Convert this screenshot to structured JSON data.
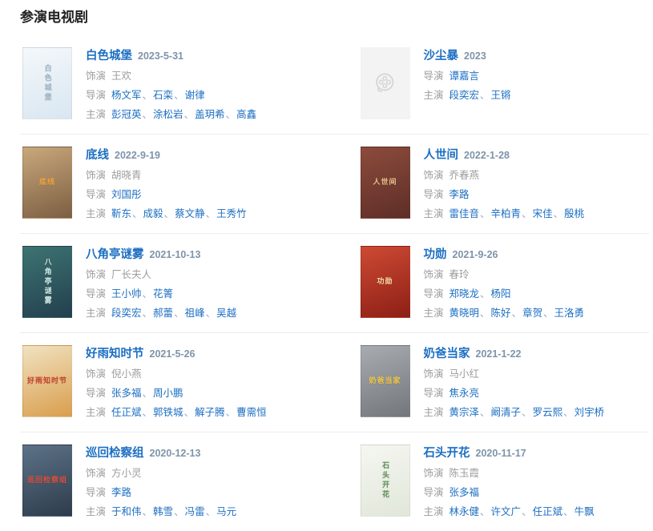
{
  "page": {
    "title": "参演电视剧"
  },
  "labels": {
    "role": "饰演",
    "director": "导演",
    "cast": "主演",
    "separator": "、"
  },
  "colors": {
    "link": "#1b6ec2",
    "date": "#7e94a9",
    "muted_text": "#9c9c9c",
    "divider": "#ececec",
    "placeholder_bg": "#f3f3f3",
    "placeholder_icon": "#d5d5d5"
  },
  "entries": [
    {
      "title": "白色城堡",
      "date": "2023-5-31",
      "role": "王欢",
      "directors": [
        "杨文军",
        "石栾",
        "谢律"
      ],
      "cast": [
        "彭冠英",
        "涂松岩",
        "盖玥希",
        "高鑫"
      ],
      "poster": {
        "type": "image",
        "label": "白色城堡",
        "label_vertical": true,
        "colors": [
          "#f4f8fb",
          "#d9e6f1"
        ],
        "label_color": "#9fb4c6"
      }
    },
    {
      "title": "沙尘暴",
      "date": "2023",
      "role": null,
      "directors": [
        "谭嘉言"
      ],
      "cast": [
        "段奕宏",
        "王锵"
      ],
      "poster": {
        "type": "placeholder",
        "icon": "film-reel-icon"
      }
    },
    {
      "title": "底线",
      "date": "2022-9-19",
      "role": "胡晓青",
      "directors": [
        "刘国彤"
      ],
      "cast": [
        "靳东",
        "成毅",
        "蔡文静",
        "王秀竹"
      ],
      "poster": {
        "type": "image",
        "label": "底线",
        "label_vertical": false,
        "colors": [
          "#c9a87c",
          "#7c5e42"
        ],
        "label_color": "#eda63d"
      }
    },
    {
      "title": "人世间",
      "date": "2022-1-28",
      "role": "乔春燕",
      "directors": [
        "李路"
      ],
      "cast": [
        "雷佳音",
        "辛柏青",
        "宋佳",
        "殷桃"
      ],
      "poster": {
        "type": "image",
        "label": "人世间",
        "label_vertical": false,
        "colors": [
          "#8c4b3c",
          "#5e2e27"
        ],
        "label_color": "#e9c58b"
      }
    },
    {
      "title": "八角亭谜雾",
      "date": "2021-10-13",
      "role": "厂长夫人",
      "directors": [
        "王小帅",
        "花箐"
      ],
      "cast": [
        "段奕宏",
        "郝蕾",
        "祖峰",
        "吴越"
      ],
      "poster": {
        "type": "image",
        "label": "八角亭谜雾",
        "label_vertical": true,
        "colors": [
          "#3d7472",
          "#233f4e"
        ],
        "label_color": "#cfe7e4"
      }
    },
    {
      "title": "功勋",
      "date": "2021-9-26",
      "role": "春玲",
      "directors": [
        "郑晓龙",
        "杨阳"
      ],
      "cast": [
        "黄晓明",
        "陈好",
        "章贺",
        "王洛勇"
      ],
      "poster": {
        "type": "image",
        "label": "功勋",
        "label_vertical": false,
        "colors": [
          "#cd4a33",
          "#8d1f16"
        ],
        "label_color": "#f3d9a0"
      }
    },
    {
      "title": "好雨知时节",
      "date": "2021-5-26",
      "role": "倪小燕",
      "directors": [
        "张多福",
        "周小鹏"
      ],
      "cast": [
        "任正斌",
        "郭铁城",
        "解子腾",
        "曹需恒"
      ],
      "poster": {
        "type": "image",
        "label": "好雨知时节",
        "label_vertical": false,
        "colors": [
          "#f1e2c1",
          "#d99e4d"
        ],
        "label_color": "#c8432e"
      }
    },
    {
      "title": "奶爸当家",
      "date": "2021-1-22",
      "role": "马小红",
      "directors": [
        "焦永亮"
      ],
      "cast": [
        "黄宗泽",
        "阚清子",
        "罗云熙",
        "刘宇桥"
      ],
      "poster": {
        "type": "image",
        "label": "奶爸当家",
        "label_vertical": false,
        "colors": [
          "#a8acb1",
          "#73777c"
        ],
        "label_color": "#f2c53d"
      }
    },
    {
      "title": "巡回检察组",
      "date": "2020-12-13",
      "role": "方小灵",
      "directors": [
        "李路"
      ],
      "cast": [
        "于和伟",
        "韩雪",
        "冯雷",
        "马元"
      ],
      "poster": {
        "type": "image",
        "label": "巡回检察组",
        "label_vertical": false,
        "colors": [
          "#5d7287",
          "#2d3c4c"
        ],
        "label_color": "#d94f3d"
      }
    },
    {
      "title": "石头开花",
      "date": "2020-11-17",
      "role": "陈玉霞",
      "directors": [
        "张多福"
      ],
      "cast": [
        "林永健",
        "许文广",
        "任正斌",
        "牛飘"
      ],
      "poster": {
        "type": "image",
        "label": "石头开花",
        "label_vertical": true,
        "colors": [
          "#f5f6f1",
          "#e1e7d9"
        ],
        "label_color": "#5d8f57"
      }
    }
  ]
}
